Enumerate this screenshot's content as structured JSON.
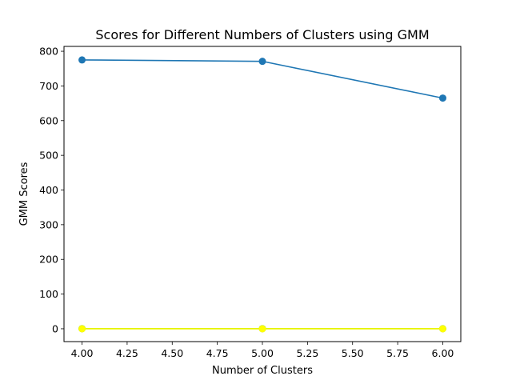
{
  "chart_data": {
    "type": "line",
    "title": "Scores for Different Numbers of Clusters using GMM",
    "xlabel": "Number of Clusters",
    "ylabel": "GMM Scores",
    "xlim": [
      3.9,
      6.1
    ],
    "ylim": [
      -37,
      814
    ],
    "xticks": [
      4.0,
      4.25,
      4.5,
      4.75,
      5.0,
      5.25,
      5.5,
      5.75,
      6.0
    ],
    "xtick_labels": [
      "4.00",
      "4.25",
      "4.50",
      "4.75",
      "5.00",
      "5.25",
      "5.50",
      "5.75",
      "6.00"
    ],
    "yticks": [
      0,
      100,
      200,
      300,
      400,
      500,
      600,
      700,
      800
    ],
    "ytick_labels": [
      "0",
      "100",
      "200",
      "300",
      "400",
      "500",
      "600",
      "700",
      "800"
    ],
    "grid": false,
    "series": [
      {
        "x": [
          4,
          5,
          6
        ],
        "values": [
          775,
          771,
          665
        ],
        "color": "#1f77b4",
        "marker": "circle"
      },
      {
        "x": [
          4,
          5,
          6
        ],
        "values": [
          0.3,
          0.3,
          0.2
        ],
        "color": "#2ca02c",
        "marker": "circle"
      },
      {
        "x": [
          4,
          5,
          6
        ],
        "values": [
          0,
          0,
          0
        ],
        "color": "#ffff00",
        "marker": "circle"
      }
    ]
  }
}
